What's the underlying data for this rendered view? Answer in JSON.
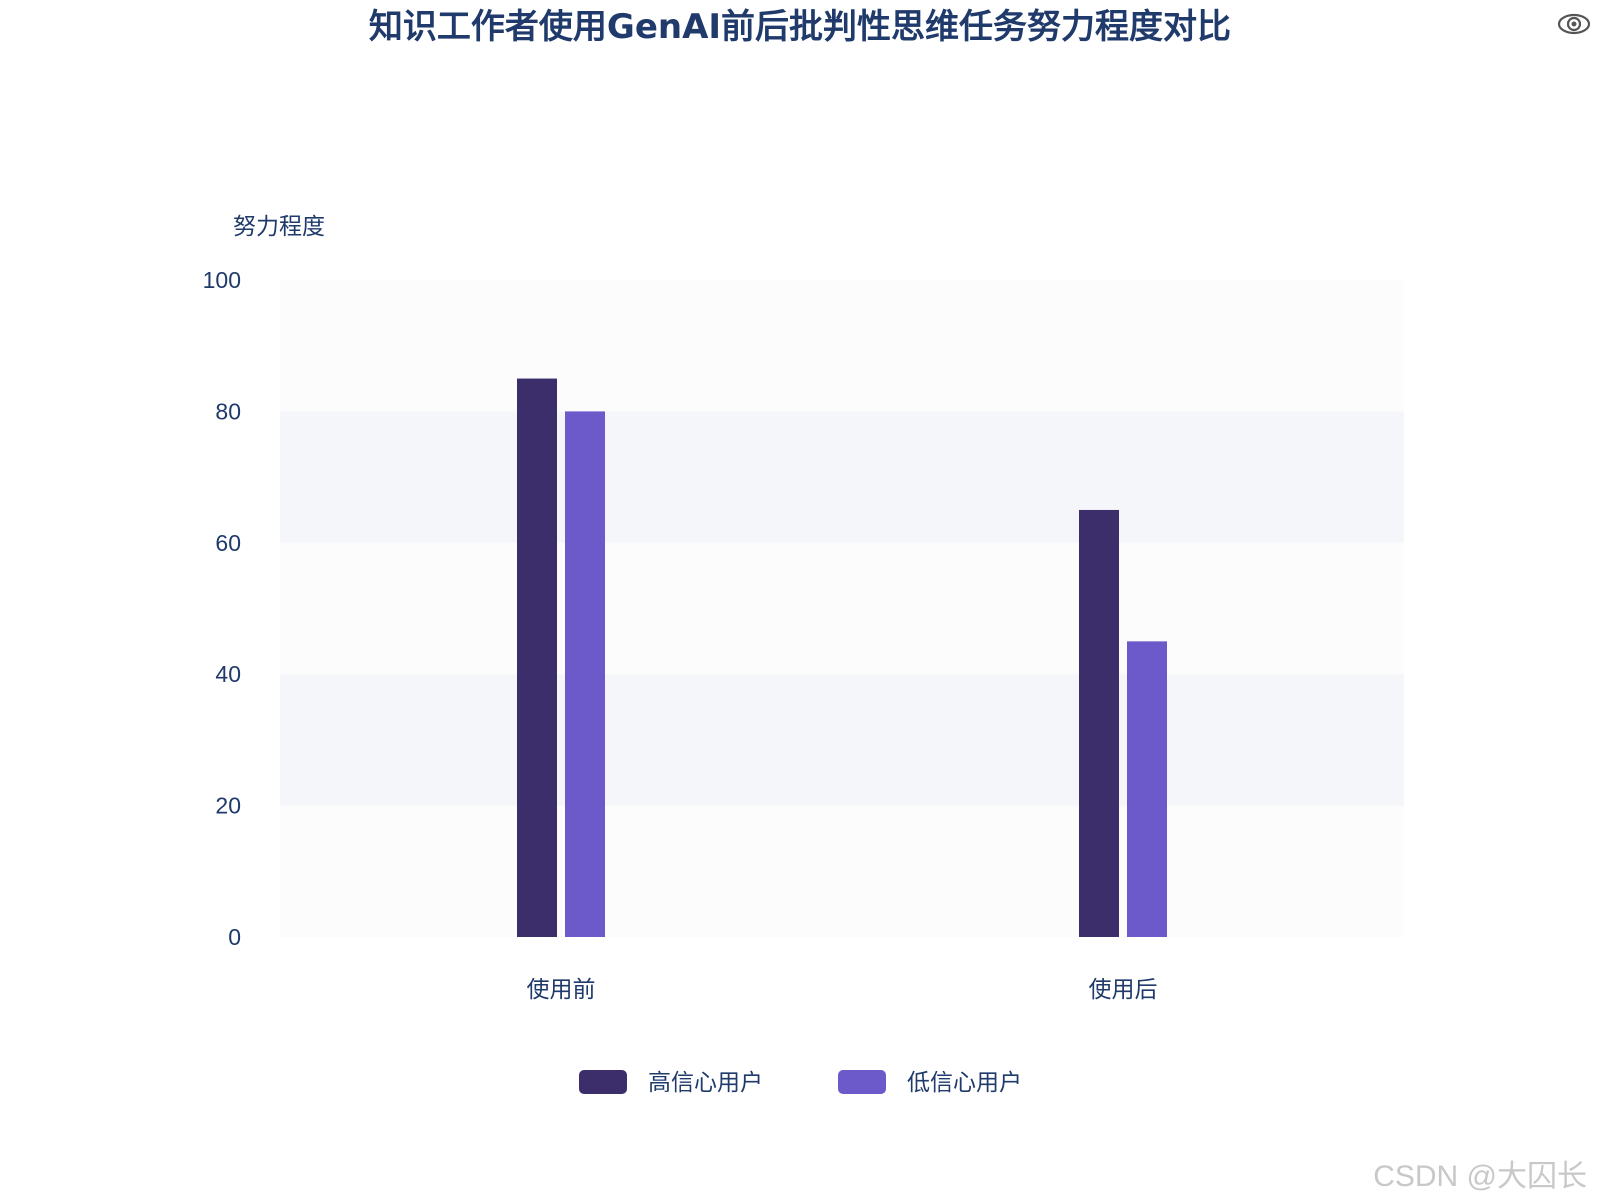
{
  "chart_data": {
    "type": "bar",
    "title": "知识工作者使用GenAI前后批判性思维任务努力程度对比",
    "xlabel": "",
    "ylabel": "努力程度",
    "ylim": [
      0,
      100
    ],
    "yticks": [
      0,
      20,
      40,
      60,
      80,
      100
    ],
    "categories": [
      "使用前",
      "使用后"
    ],
    "series": [
      {
        "name": "高信心用户",
        "values": [
          85,
          65
        ],
        "color": "#3b2e6b"
      },
      {
        "name": "低信心用户",
        "values": [
          80,
          45
        ],
        "color": "#6c5acb"
      }
    ],
    "grid": true,
    "legend_position": "bottom-center"
  },
  "toolbar": {
    "view_icon": "eye-icon"
  },
  "watermark": {
    "text": "CSDN @大囚长"
  }
}
